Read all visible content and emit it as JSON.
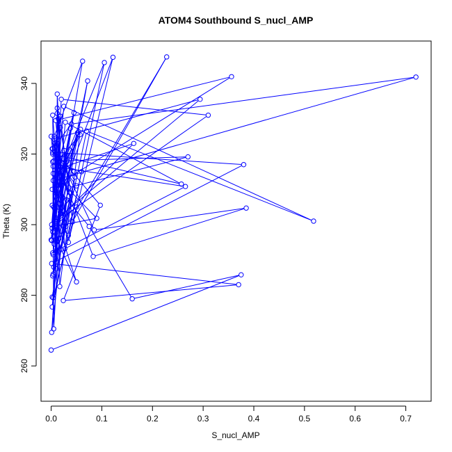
{
  "chart_data": {
    "type": "line",
    "title": "ATOM4 Southbound S_nucl_AMP",
    "xlabel": "S_nucl_AMP",
    "ylabel": "Theta (K)",
    "xlim": [
      -0.02,
      0.75
    ],
    "ylim": [
      250,
      352
    ],
    "xticks": [
      "0.0",
      "0.1",
      "0.2",
      "0.3",
      "0.4",
      "0.5",
      "0.6",
      "0.7"
    ],
    "yticks": [
      "260",
      "280",
      "300",
      "320",
      "340"
    ],
    "grid": false,
    "legend": "none",
    "series": [
      {
        "style": "line-with-open-circles",
        "color": "#0000ff",
        "points": [
          [
            0.0,
            264.5
          ],
          [
            0.375,
            285.8
          ],
          [
            0.16,
            279.0
          ],
          [
            0.075,
            299.5
          ],
          [
            0.014,
            310.2
          ],
          [
            0.003,
            331.0
          ],
          [
            0.005,
            305.0
          ],
          [
            0.01,
            296.0
          ],
          [
            0.032,
            318.0
          ],
          [
            0.001,
            300.0
          ],
          [
            0.018,
            327.5
          ],
          [
            0.006,
            294.5
          ],
          [
            0.004,
            291.5
          ],
          [
            0.028,
            303.0
          ],
          [
            0.002,
            305.5
          ],
          [
            0.058,
            327.0
          ],
          [
            0.017,
            282.5
          ],
          [
            0.012,
            331.5
          ],
          [
            0.009,
            308.0
          ],
          [
            0.045,
            315.0
          ],
          [
            0.003,
            320.5
          ],
          [
            0.38,
            317.0
          ],
          [
            0.001,
            289.0
          ],
          [
            0.37,
            283.0
          ],
          [
            0.024,
            278.5
          ],
          [
            0.097,
            305.5
          ],
          [
            0.003,
            321.5
          ],
          [
            0.04,
            328.5
          ],
          [
            0.72,
            341.8
          ],
          [
            0.004,
            312.5
          ],
          [
            0.01,
            287.5
          ],
          [
            0.012,
            337.0
          ],
          [
            0.024,
            304.0
          ],
          [
            0.035,
            310.5
          ],
          [
            0.27,
            319.2
          ],
          [
            0.005,
            318.0
          ],
          [
            0.0,
            325.0
          ],
          [
            0.035,
            308.0
          ],
          [
            0.002,
            321.5
          ],
          [
            0.083,
            291.0
          ],
          [
            0.385,
            304.7
          ],
          [
            0.085,
            298.5
          ],
          [
            0.007,
            322.0
          ],
          [
            0.018,
            330.7
          ],
          [
            0.042,
            300.8
          ],
          [
            0.228,
            347.5
          ],
          [
            0.015,
            296.0
          ],
          [
            0.031,
            307.0
          ],
          [
            0.02,
            293.0
          ],
          [
            0.07,
            326.5
          ],
          [
            0.518,
            301.0
          ],
          [
            0.025,
            333.5
          ],
          [
            0.003,
            298.0
          ],
          [
            0.05,
            283.8
          ],
          [
            0.01,
            301.5
          ],
          [
            0.294,
            335.5
          ],
          [
            0.01,
            324.5
          ],
          [
            0.002,
            299.0
          ],
          [
            0.05,
            305.0
          ],
          [
            0.004,
            279.3
          ],
          [
            0.013,
            294.0
          ],
          [
            0.072,
            340.7
          ],
          [
            0.006,
            295.5
          ],
          [
            0.045,
            331.7
          ],
          [
            0.008,
            315.5
          ],
          [
            0.163,
            323.0
          ],
          [
            0.01,
            301.0
          ],
          [
            0.034,
            297.0
          ],
          [
            0.105,
            345.9
          ],
          [
            0.012,
            313.0
          ],
          [
            0.026,
            321.0
          ],
          [
            0.005,
            270.5
          ],
          [
            0.003,
            317.8
          ],
          [
            0.06,
            315.0
          ],
          [
            0.002,
            276.7
          ],
          [
            0.022,
            313.0
          ],
          [
            0.062,
            346.3
          ],
          [
            0.006,
            325.0
          ],
          [
            0.009,
            302.0
          ],
          [
            0.028,
            329.0
          ],
          [
            0.257,
            311.5
          ],
          [
            0.003,
            320.0
          ],
          [
            0.05,
            311.0
          ],
          [
            0.011,
            301.0
          ],
          [
            0.31,
            331.0
          ],
          [
            0.02,
            335.5
          ],
          [
            0.006,
            299.5
          ],
          [
            0.09,
            301.8
          ],
          [
            0.004,
            314.5
          ],
          [
            0.034,
            295.0
          ],
          [
            0.122,
            347.4
          ],
          [
            0.007,
            304.5
          ],
          [
            0.038,
            327.3
          ],
          [
            0.0,
            295.7
          ],
          [
            0.015,
            318.0
          ],
          [
            0.027,
            293.2
          ],
          [
            0.265,
            310.8
          ],
          [
            0.004,
            316.5
          ],
          [
            0.057,
            325.5
          ],
          [
            0.013,
            311.0
          ],
          [
            0.002,
            310.0
          ],
          [
            0.042,
            322.0
          ],
          [
            0.001,
            269.5
          ],
          [
            0.02,
            312.0
          ],
          [
            0.356,
            341.9
          ],
          [
            0.009,
            329.5
          ],
          [
            0.029,
            299.5
          ],
          [
            0.003,
            285.5
          ],
          [
            0.016,
            306.0
          ],
          [
            0.005,
            288.0
          ],
          [
            0.047,
            313.5
          ],
          [
            0.002,
            279.5
          ],
          [
            0.039,
            309.0
          ],
          [
            0.012,
            333.0
          ],
          [
            0.024,
            300.0
          ],
          [
            0.004,
            286.0
          ],
          [
            0.018,
            303.5
          ],
          [
            0.031,
            319.5
          ],
          [
            0.001,
            295.5
          ],
          [
            0.014,
            330.0
          ],
          [
            0.022,
            307.5
          ],
          [
            0.007,
            323.0
          ],
          [
            0.01,
            309.5
          ],
          [
            0.052,
            326.0
          ],
          [
            0.003,
            292.0
          ]
        ]
      }
    ]
  }
}
